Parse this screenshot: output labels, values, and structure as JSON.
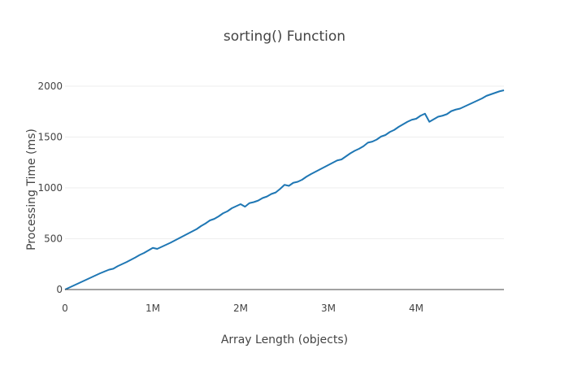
{
  "chart_data": {
    "type": "line",
    "title": "sorting() Function",
    "xlabel": "Array Length (objects)",
    "ylabel": "Processing Time (ms)",
    "xlim": [
      0,
      5000000
    ],
    "ylim": [
      0,
      2000
    ],
    "x_ticks": [
      {
        "value": 0,
        "label": "0"
      },
      {
        "value": 1000000,
        "label": "1M"
      },
      {
        "value": 2000000,
        "label": "2M"
      },
      {
        "value": 3000000,
        "label": "3M"
      },
      {
        "value": 4000000,
        "label": "4M"
      }
    ],
    "y_ticks": [
      {
        "value": 0,
        "label": "0"
      },
      {
        "value": 500,
        "label": "500"
      },
      {
        "value": 1000,
        "label": "1000"
      },
      {
        "value": 1500,
        "label": "1500"
      },
      {
        "value": 2000,
        "label": "2000"
      }
    ],
    "grid": "y-only",
    "legend": "none",
    "series": [
      {
        "color": "#1f77b4",
        "x": [
          0,
          100000,
          200000,
          300000,
          400000,
          500000,
          550000,
          600000,
          700000,
          800000,
          850000,
          900000,
          950000,
          1000000,
          1050000,
          1100000,
          1150000,
          1200000,
          1300000,
          1400000,
          1500000,
          1550000,
          1600000,
          1650000,
          1700000,
          1750000,
          1800000,
          1850000,
          1900000,
          1950000,
          2000000,
          2050000,
          2100000,
          2150000,
          2200000,
          2250000,
          2300000,
          2350000,
          2400000,
          2450000,
          2500000,
          2550000,
          2600000,
          2650000,
          2700000,
          2750000,
          2800000,
          2900000,
          3000000,
          3100000,
          3150000,
          3200000,
          3250000,
          3300000,
          3350000,
          3400000,
          3450000,
          3500000,
          3550000,
          3600000,
          3650000,
          3700000,
          3750000,
          3800000,
          3850000,
          3900000,
          3950000,
          4000000,
          4050000,
          4100000,
          4150000,
          4200000,
          4250000,
          4300000,
          4350000,
          4400000,
          4450000,
          4500000,
          4550000,
          4600000,
          4650000,
          4700000,
          4750000,
          4800000,
          4850000,
          4900000,
          4950000,
          5000000
        ],
        "y": [
          0,
          40,
          80,
          120,
          160,
          195,
          205,
          230,
          270,
          315,
          340,
          360,
          385,
          410,
          400,
          420,
          440,
          460,
          505,
          550,
          595,
          625,
          650,
          680,
          695,
          720,
          750,
          770,
          800,
          820,
          840,
          815,
          850,
          860,
          875,
          900,
          915,
          940,
          955,
          990,
          1030,
          1020,
          1050,
          1060,
          1080,
          1110,
          1135,
          1180,
          1225,
          1270,
          1280,
          1310,
          1340,
          1365,
          1385,
          1410,
          1445,
          1455,
          1475,
          1505,
          1520,
          1550,
          1570,
          1600,
          1625,
          1650,
          1670,
          1680,
          1710,
          1730,
          1650,
          1675,
          1700,
          1710,
          1725,
          1755,
          1770,
          1780,
          1800,
          1820,
          1840,
          1860,
          1880,
          1905,
          1920,
          1935,
          1950,
          1960
        ]
      }
    ]
  }
}
